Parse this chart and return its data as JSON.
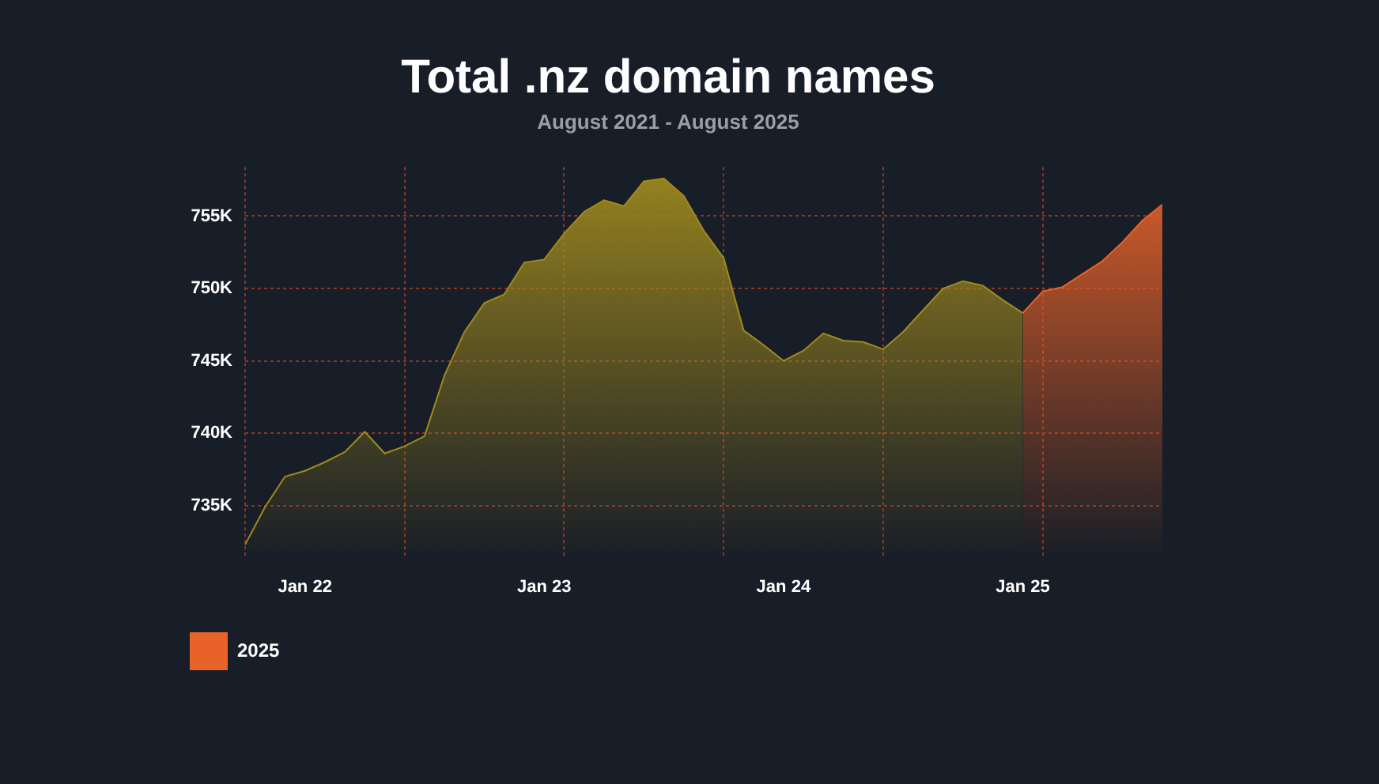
{
  "chart_data": {
    "type": "area",
    "title": "Total .nz domain names",
    "subtitle": "August 2021 - August 2025",
    "categories": [
      null,
      null,
      null,
      "Jan 22",
      null,
      null,
      null,
      null,
      null,
      null,
      null,
      null,
      null,
      null,
      null,
      "Jan 23",
      null,
      null,
      null,
      null,
      null,
      null,
      null,
      null,
      null,
      null,
      null,
      "Jan 24",
      null,
      null,
      null,
      null,
      null,
      null,
      null,
      null,
      null,
      null,
      null,
      "Jan 25",
      null,
      null,
      null,
      null,
      null,
      null,
      null
    ],
    "series": [
      {
        "color": "#a08a1e",
        "values": [
          732.3,
          734.9,
          737.0,
          737.4,
          738.0,
          738.7,
          740.1,
          738.6,
          739.1,
          739.8,
          744.0,
          747.0,
          749.0,
          749.6,
          751.8,
          752.0,
          753.8,
          755.3,
          756.1,
          755.7,
          757.4,
          757.6,
          756.4,
          754.0,
          752.1,
          747.1,
          746.1,
          745.0,
          745.7,
          746.9,
          746.4,
          746.3,
          745.8,
          747.0,
          748.5,
          750.0,
          750.5,
          750.2,
          749.2,
          748.3,
          null,
          null,
          null,
          null,
          null,
          null,
          null
        ]
      },
      {
        "name": "2025",
        "color": "#e8622a",
        "values": [
          null,
          null,
          null,
          null,
          null,
          null,
          null,
          null,
          null,
          null,
          null,
          null,
          null,
          null,
          null,
          null,
          null,
          null,
          null,
          null,
          null,
          null,
          null,
          null,
          null,
          null,
          null,
          null,
          null,
          null,
          null,
          null,
          null,
          null,
          null,
          null,
          null,
          null,
          null,
          748.3,
          749.8,
          750.1,
          751.0,
          751.9,
          753.2,
          754.7,
          755.8
        ]
      }
    ],
    "ylim": [
      731.4,
      758.4
    ],
    "yticks": [
      {
        "value": 735,
        "label": "735K"
      },
      {
        "value": 740,
        "label": "740K"
      },
      {
        "value": 745,
        "label": "745K"
      },
      {
        "value": 750,
        "label": "750K"
      },
      {
        "value": 755,
        "label": "755K"
      }
    ],
    "grid": true,
    "legend": "bottom left",
    "marker": "none"
  }
}
